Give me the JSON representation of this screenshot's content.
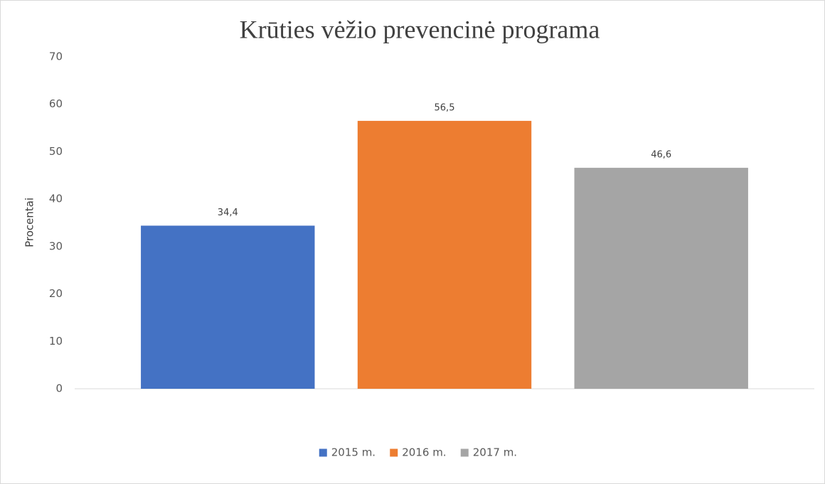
{
  "chart_data": {
    "type": "bar",
    "title": "Krūties vėžio prevencinė programa",
    "y_label": "Procentai",
    "categories": [
      null
    ],
    "series": [
      {
        "name": "2015 m.",
        "color": "#4472c4",
        "values": [
          34.4
        ],
        "value_labels": [
          "34,4"
        ]
      },
      {
        "name": "2016 m.",
        "color": "#ed7d31",
        "values": [
          56.5
        ],
        "value_labels": [
          "56,5"
        ]
      },
      {
        "name": "2017 m.",
        "color": "#a5a5a5",
        "values": [
          46.6
        ],
        "value_labels": [
          "46,6"
        ]
      }
    ],
    "ylim": [
      0,
      70
    ],
    "yticks": [
      0,
      10,
      20,
      30,
      40,
      50,
      60,
      70
    ],
    "grid": false,
    "legend": "bottom"
  }
}
